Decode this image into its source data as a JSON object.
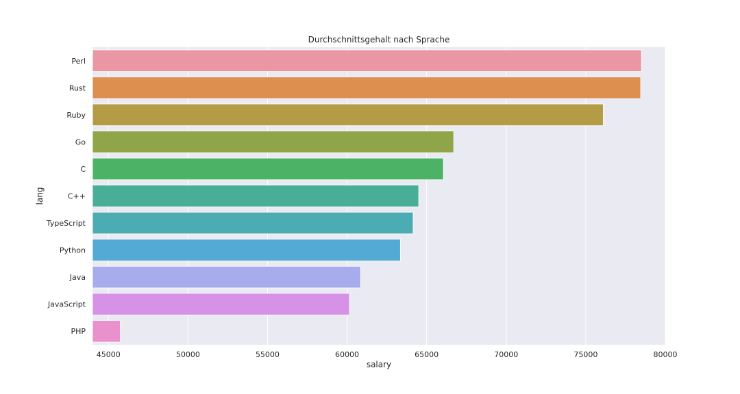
{
  "chart_data": {
    "type": "bar",
    "orientation": "horizontal",
    "title": "Durchschnittsgehalt nach Sprache",
    "xlabel": "salary",
    "ylabel": "lang",
    "xlim": [
      44000,
      80000
    ],
    "xticks": [
      45000,
      50000,
      55000,
      60000,
      65000,
      70000,
      75000,
      80000
    ],
    "grid": true,
    "categories": [
      "Perl",
      "Rust",
      "Ruby",
      "Go",
      "C",
      "C++",
      "TypeScript",
      "Python",
      "Java",
      "JavaScript",
      "PHP"
    ],
    "values": [
      78500,
      78450,
      76100,
      66700,
      66050,
      64500,
      64150,
      63350,
      60850,
      60150,
      45750
    ],
    "colors": [
      "#ea96a3",
      "#dc8f4e",
      "#b49c47",
      "#90a548",
      "#4cb266",
      "#49ae97",
      "#4cacb3",
      "#52aad5",
      "#a6acec",
      "#d692e6",
      "#e991cc"
    ]
  }
}
